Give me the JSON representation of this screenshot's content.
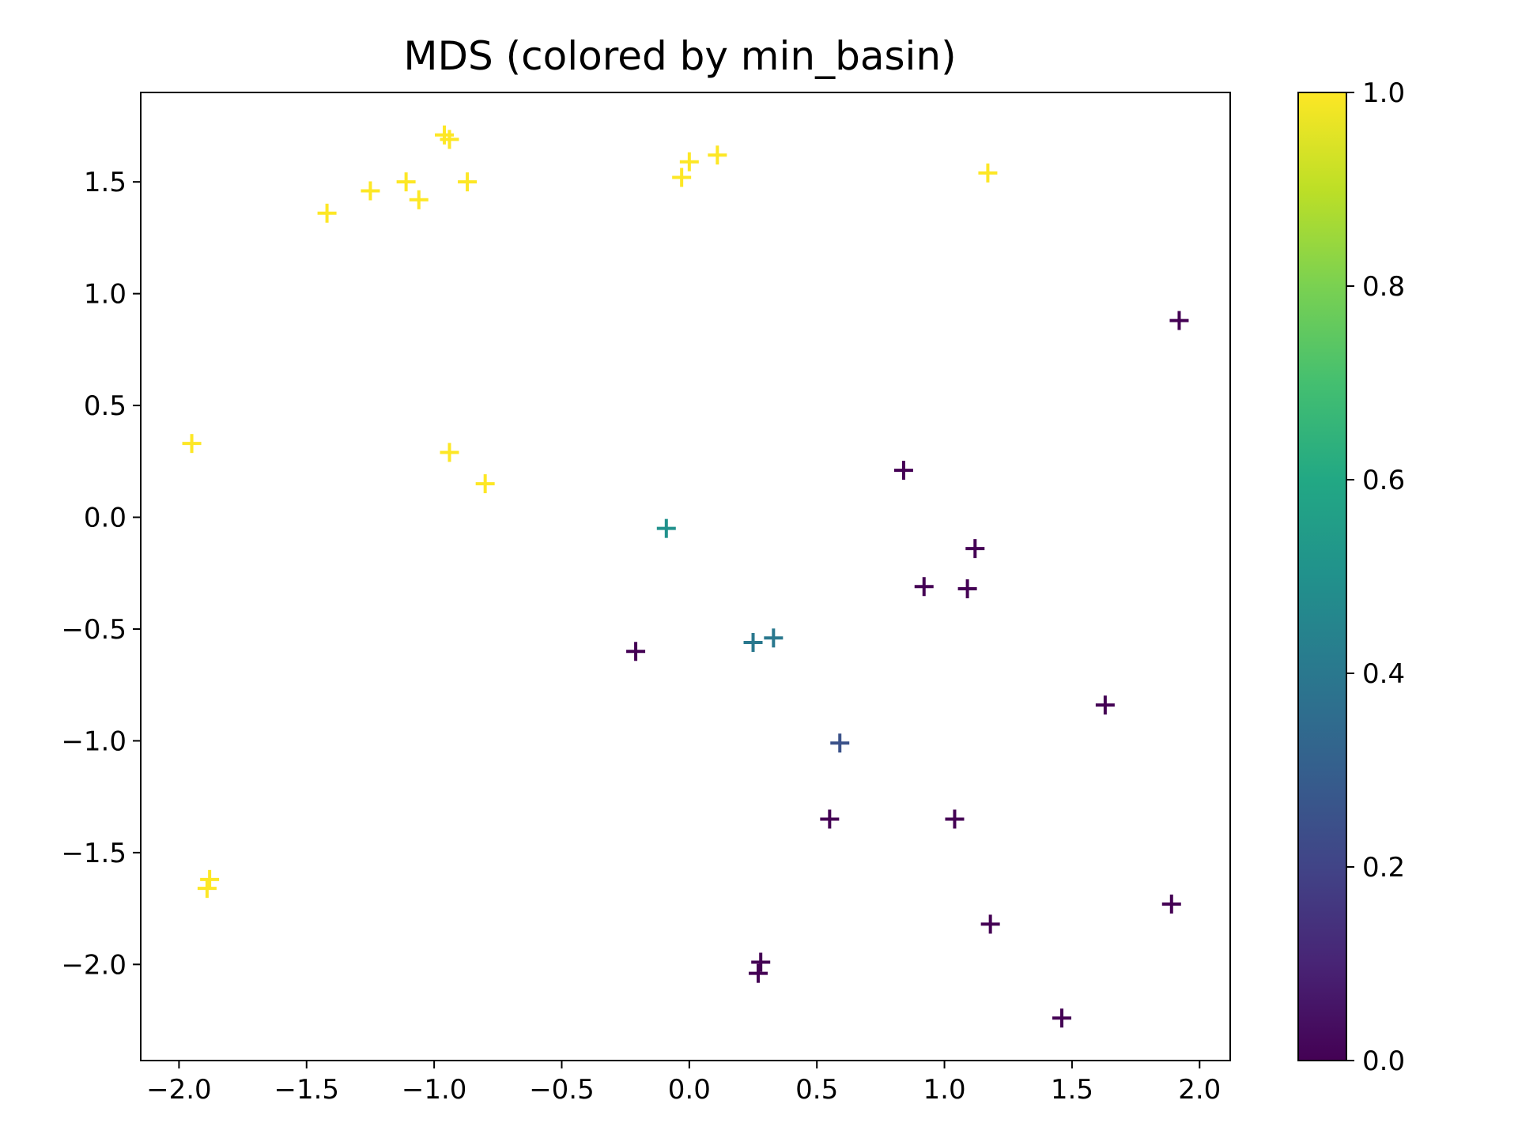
{
  "chart_data": {
    "type": "scatter",
    "title": "MDS (colored by min_basin)",
    "xlabel": "",
    "ylabel": "",
    "marker": "+",
    "colormap": "viridis",
    "xlim": [
      -2.15,
      2.12
    ],
    "ylim": [
      -2.43,
      1.9
    ],
    "xticks": [
      -2.0,
      -1.5,
      -1.0,
      -0.5,
      0.0,
      0.5,
      1.0,
      1.5,
      2.0
    ],
    "xtick_labels": [
      "−2.0",
      "−1.5",
      "−1.0",
      "−0.5",
      "0.0",
      "0.5",
      "1.0",
      "1.5",
      "2.0"
    ],
    "yticks": [
      -2.0,
      -1.5,
      -1.0,
      -0.5,
      0.0,
      0.5,
      1.0,
      1.5
    ],
    "ytick_labels": [
      "−2.0",
      "−1.5",
      "−1.0",
      "−0.5",
      "0.0",
      "0.5",
      "1.0",
      "1.5"
    ],
    "colorbar": {
      "range": [
        0.0,
        1.0
      ],
      "ticks": [
        0.0,
        0.2,
        0.4,
        0.6,
        0.8,
        1.0
      ],
      "tick_labels": [
        "0.0",
        "0.2",
        "0.4",
        "0.6",
        "0.8",
        "1.0"
      ]
    },
    "grid": false,
    "points": [
      {
        "x": -0.96,
        "y": 1.71,
        "c": 1.0
      },
      {
        "x": -0.94,
        "y": 1.69,
        "c": 1.0
      },
      {
        "x": -0.87,
        "y": 1.5,
        "c": 1.0
      },
      {
        "x": -1.11,
        "y": 1.5,
        "c": 1.0
      },
      {
        "x": -1.06,
        "y": 1.42,
        "c": 1.0
      },
      {
        "x": -1.25,
        "y": 1.46,
        "c": 1.0
      },
      {
        "x": -1.42,
        "y": 1.36,
        "c": 1.0
      },
      {
        "x": 0.11,
        "y": 1.62,
        "c": 1.0
      },
      {
        "x": 0.0,
        "y": 1.59,
        "c": 1.0
      },
      {
        "x": -0.03,
        "y": 1.52,
        "c": 1.0
      },
      {
        "x": 1.17,
        "y": 1.54,
        "c": 1.0
      },
      {
        "x": -1.95,
        "y": 0.33,
        "c": 1.0
      },
      {
        "x": -0.94,
        "y": 0.29,
        "c": 1.0
      },
      {
        "x": -0.8,
        "y": 0.15,
        "c": 1.0
      },
      {
        "x": -1.88,
        "y": -1.62,
        "c": 1.0
      },
      {
        "x": -1.89,
        "y": -1.66,
        "c": 1.0
      },
      {
        "x": -0.09,
        "y": -0.05,
        "c": 0.5
      },
      {
        "x": 0.25,
        "y": -0.56,
        "c": 0.4
      },
      {
        "x": 0.33,
        "y": -0.54,
        "c": 0.4
      },
      {
        "x": 0.59,
        "y": -1.01,
        "c": 0.25
      },
      {
        "x": 1.92,
        "y": 0.88,
        "c": 0.0
      },
      {
        "x": 0.84,
        "y": 0.21,
        "c": 0.0
      },
      {
        "x": 1.12,
        "y": -0.14,
        "c": 0.0
      },
      {
        "x": 0.92,
        "y": -0.31,
        "c": 0.0
      },
      {
        "x": 1.09,
        "y": -0.32,
        "c": 0.0
      },
      {
        "x": -0.21,
        "y": -0.6,
        "c": 0.0
      },
      {
        "x": 1.63,
        "y": -0.84,
        "c": 0.0
      },
      {
        "x": 0.55,
        "y": -1.35,
        "c": 0.0
      },
      {
        "x": 1.04,
        "y": -1.35,
        "c": 0.0
      },
      {
        "x": 1.89,
        "y": -1.73,
        "c": 0.0
      },
      {
        "x": 1.18,
        "y": -1.82,
        "c": 0.0
      },
      {
        "x": 0.28,
        "y": -1.99,
        "c": 0.0
      },
      {
        "x": 0.27,
        "y": -2.04,
        "c": 0.0
      },
      {
        "x": 1.46,
        "y": -2.24,
        "c": 0.0
      }
    ]
  }
}
